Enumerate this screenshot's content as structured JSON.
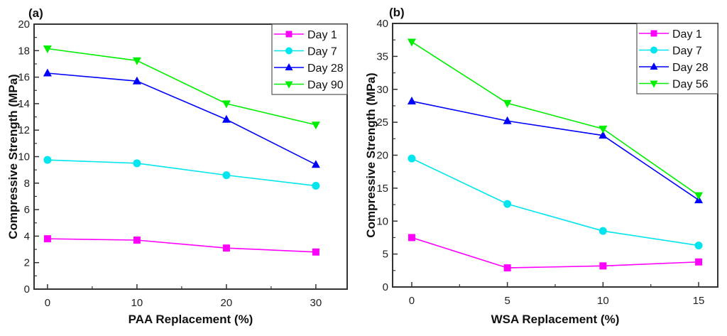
{
  "chart_data": [
    {
      "type": "line",
      "panel_label": "(a)",
      "title": "",
      "xlabel": "PAA Replacement (%)",
      "ylabel": "Compressive Strength (MPa)",
      "x": [
        0,
        10,
        20,
        30
      ],
      "xlim": [
        -1.5,
        33.5
      ],
      "ylim": [
        0,
        20
      ],
      "xticks": [
        0,
        10,
        20,
        30
      ],
      "xtick_labels": [
        "0",
        "10",
        "20",
        "30"
      ],
      "yticks": [
        0,
        2,
        4,
        6,
        8,
        10,
        12,
        14,
        16,
        18,
        20
      ],
      "ytick_labels": [
        "0",
        "2",
        "4",
        "6",
        "8",
        "10",
        "12",
        "14",
        "16",
        "18",
        "20"
      ],
      "grid": false,
      "legend_position": "top-right",
      "series": [
        {
          "name": "Day 1",
          "color": "#ff00ff",
          "marker": "square",
          "values": [
            3.8,
            3.7,
            3.1,
            2.8
          ]
        },
        {
          "name": "Day 7",
          "color": "#00e5ee",
          "marker": "circle",
          "values": [
            9.75,
            9.5,
            8.6,
            7.8
          ]
        },
        {
          "name": "Day 28",
          "color": "#0000ff",
          "marker": "triangle-up",
          "values": [
            16.3,
            15.7,
            12.8,
            9.4
          ]
        },
        {
          "name": "Day 90",
          "color": "#00ee00",
          "marker": "triangle-down",
          "values": [
            18.15,
            17.25,
            14.0,
            12.4
          ]
        }
      ]
    },
    {
      "type": "line",
      "panel_label": "(b)",
      "title": "",
      "xlabel": "WSA Replacement (%)",
      "ylabel": "Compressive Strength (MPa)",
      "x": [
        0,
        5,
        10,
        15
      ],
      "xlim": [
        -1,
        16
      ],
      "ylim": [
        0,
        40
      ],
      "xticks": [
        0,
        5,
        10,
        15
      ],
      "xtick_labels": [
        "0",
        "5",
        "10",
        "15"
      ],
      "yticks": [
        0,
        5,
        10,
        15,
        20,
        25,
        30,
        35,
        40
      ],
      "ytick_labels": [
        "0",
        "5",
        "10",
        "15",
        "20",
        "25",
        "30",
        "35",
        "40"
      ],
      "grid": false,
      "legend_position": "top-right",
      "series": [
        {
          "name": "Day 1",
          "color": "#ff00ff",
          "marker": "square",
          "values": [
            7.5,
            2.9,
            3.2,
            3.8
          ]
        },
        {
          "name": "Day 7",
          "color": "#00e5ee",
          "marker": "circle",
          "values": [
            19.5,
            12.6,
            8.5,
            6.3
          ]
        },
        {
          "name": "Day 28",
          "color": "#0000ff",
          "marker": "triangle-up",
          "values": [
            28.2,
            25.2,
            23.0,
            13.2
          ]
        },
        {
          "name": "Day 56",
          "color": "#00ee00",
          "marker": "triangle-down",
          "values": [
            37.2,
            27.9,
            24.0,
            13.9
          ]
        }
      ]
    }
  ]
}
